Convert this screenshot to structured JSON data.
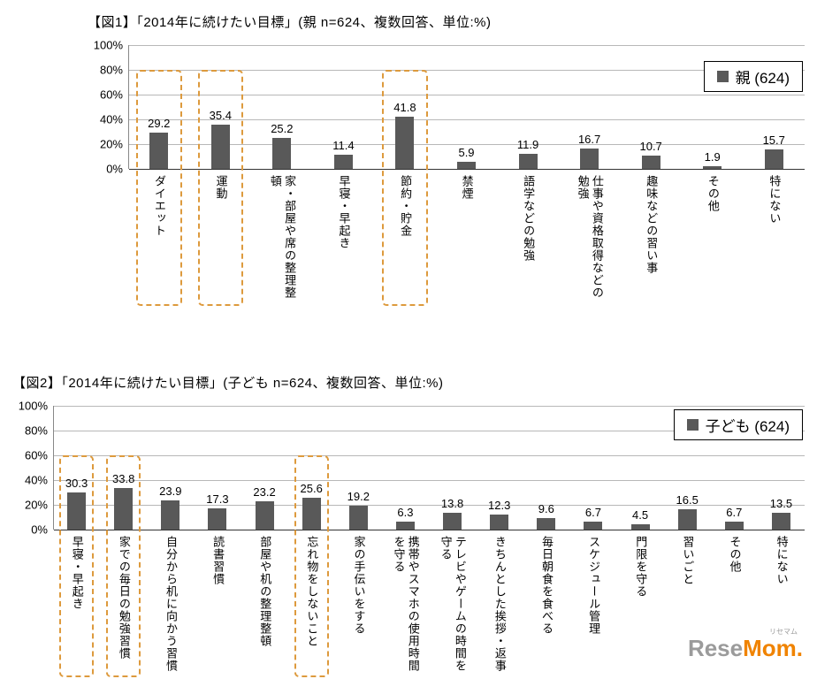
{
  "page": {
    "background": "#ffffff"
  },
  "chart_data": [
    {
      "type": "bar",
      "title": "【図1】「2014年に続けたい目標」(親 n=624、複数回答、単位:%)",
      "legend": "親 (624)",
      "xlabel": "",
      "ylabel": "",
      "ylim": [
        0,
        100
      ],
      "ytick_step": 20,
      "ytick_suffix": "%",
      "grid": true,
      "legend_position": "top-right",
      "bar_color": "#595959",
      "highlight_color": "#dd9a3d",
      "categories": [
        "ダイエット",
        "運動",
        "家・部屋や席の整理整頓",
        "早寝・早起き",
        "節約・貯金",
        "禁煙",
        "語学などの勉強",
        "仕事や資格取得などの勉強",
        "趣味などの習い事",
        "その他",
        "特にない"
      ],
      "values": [
        29.2,
        35.4,
        25.2,
        11.4,
        41.8,
        5.9,
        11.9,
        16.7,
        10.7,
        1.9,
        15.7
      ],
      "highlighted_indices": [
        0,
        1,
        4
      ],
      "highlight_top_value": 80
    },
    {
      "type": "bar",
      "title": "【図2】「2014年に続けたい目標」(子ども n=624、複数回答、単位:%)",
      "legend": "子ども (624)",
      "xlabel": "",
      "ylabel": "",
      "ylim": [
        0,
        100
      ],
      "ytick_step": 20,
      "ytick_suffix": "%",
      "grid": true,
      "legend_position": "top-right",
      "bar_color": "#595959",
      "highlight_color": "#dd9a3d",
      "categories": [
        "早寝・早起き",
        "家での毎日の勉強習慣",
        "自分から机に向かう習慣",
        "読書習慣",
        "部屋や机の整理整頓",
        "忘れ物をしないこと",
        "家の手伝いをする",
        "携帯やスマホの使用時間を守る",
        "テレビやゲームの時間を守る",
        "きちんとした挨拶・返事",
        "毎日朝食を食べる",
        "スケジュール管理",
        "門限を守る",
        "習いごと",
        "その他",
        "特にない"
      ],
      "values": [
        30.3,
        33.8,
        23.9,
        17.3,
        23.2,
        25.6,
        19.2,
        6.3,
        13.8,
        12.3,
        9.6,
        6.7,
        4.5,
        16.5,
        6.7,
        13.5
      ],
      "highlighted_indices": [
        0,
        1,
        5
      ],
      "highlight_top_value": 60
    }
  ],
  "watermark": {
    "text_primary": "Rese",
    "text_secondary": "Mom",
    "dot": ".",
    "ruby": "リセマム",
    "color_primary": "#9b9b9b",
    "color_secondary": "#f08300"
  }
}
